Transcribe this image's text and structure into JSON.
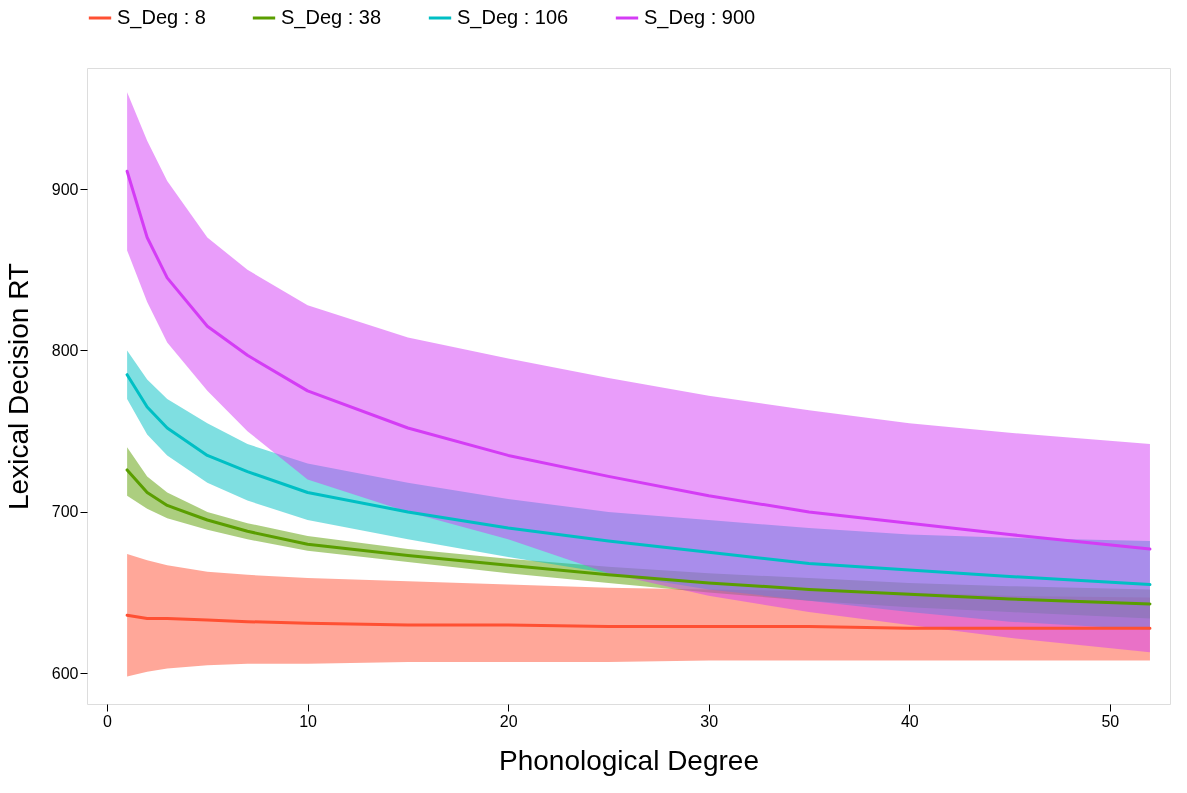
{
  "chart_data": {
    "type": "line",
    "xlabel": "Phonological Degree",
    "ylabel": "Lexical Decision RT",
    "xlim": [
      -1,
      53
    ],
    "ylim": [
      581,
      975
    ],
    "xticks": [
      0,
      10,
      20,
      30,
      40,
      50
    ],
    "yticks": [
      600,
      700,
      800,
      900
    ],
    "grid": false,
    "legend": "top",
    "x": [
      1,
      2,
      3,
      5,
      7,
      10,
      15,
      20,
      25,
      30,
      35,
      40,
      45,
      52
    ],
    "series": [
      {
        "name": "S_Deg : 8",
        "color": "#ff5033",
        "values": [
          636,
          634,
          634,
          633,
          632,
          631,
          630,
          630,
          629,
          629,
          629,
          628,
          628,
          628
        ],
        "upper": [
          674,
          670,
          667,
          663,
          661,
          659,
          657,
          655,
          653,
          652,
          651,
          650,
          648,
          647
        ],
        "lower": [
          598,
          601,
          603,
          605,
          606,
          606,
          607,
          607,
          607,
          608,
          608,
          608,
          608,
          608
        ]
      },
      {
        "name": "S_Deg : 38",
        "color": "#5a9e00",
        "values": [
          726,
          712,
          704,
          695,
          688,
          680,
          673,
          667,
          661,
          656,
          652,
          649,
          646,
          643
        ],
        "upper": [
          740,
          722,
          712,
          700,
          693,
          685,
          677,
          671,
          666,
          662,
          659,
          656,
          654,
          652
        ],
        "lower": [
          710,
          702,
          696,
          689,
          683,
          676,
          669,
          662,
          656,
          650,
          645,
          641,
          638,
          634
        ]
      },
      {
        "name": "S_Deg : 106",
        "color": "#00bfc4",
        "values": [
          785,
          765,
          752,
          735,
          725,
          712,
          700,
          690,
          682,
          675,
          668,
          664,
          660,
          655
        ],
        "upper": [
          800,
          782,
          770,
          755,
          742,
          730,
          718,
          708,
          700,
          695,
          690,
          686,
          684,
          682
        ],
        "lower": [
          770,
          748,
          735,
          718,
          707,
          695,
          683,
          672,
          662,
          652,
          645,
          638,
          632,
          627
        ]
      },
      {
        "name": "S_Deg : 900",
        "color": "#d43cf5",
        "values": [
          911,
          870,
          845,
          815,
          797,
          775,
          752,
          735,
          722,
          710,
          700,
          693,
          686,
          677
        ],
        "upper": [
          960,
          930,
          905,
          870,
          850,
          828,
          808,
          795,
          783,
          772,
          763,
          755,
          749,
          742
        ],
        "lower": [
          862,
          830,
          805,
          775,
          750,
          720,
          700,
          683,
          662,
          648,
          638,
          630,
          622,
          613
        ]
      }
    ]
  }
}
